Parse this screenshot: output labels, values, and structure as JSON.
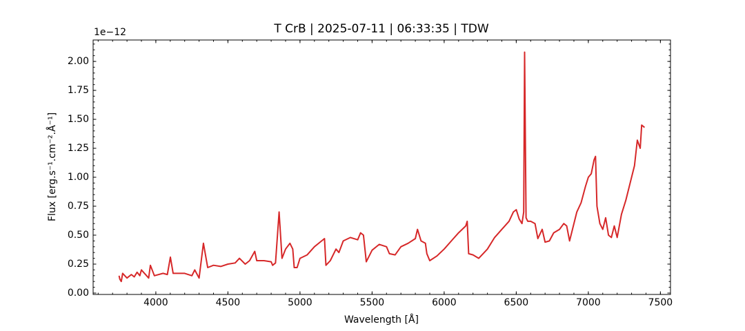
{
  "chart_data": {
    "type": "line",
    "title": "T CrB | 2025-07-11 | 06:33:35 | TDW",
    "xlabel": "Wavelength [Å]",
    "ylabel": "Flux [erg.s⁻¹.cm⁻².Å⁻¹]",
    "y_offset_label": "1e−12",
    "color": "#d62728",
    "x": [
      3745,
      3750,
      3760,
      3770,
      3800,
      3830,
      3850,
      3870,
      3889,
      3900,
      3950,
      3962,
      3990,
      4050,
      4080,
      4101,
      4120,
      4200,
      4250,
      4270,
      4300,
      4330,
      4360,
      4400,
      4450,
      4500,
      4550,
      4580,
      4620,
      4650,
      4686,
      4700,
      4750,
      4800,
      4810,
      4830,
      4855,
      4875,
      4900,
      4930,
      4950,
      4960,
      4980,
      5000,
      5050,
      5100,
      5150,
      5170,
      5180,
      5210,
      5250,
      5270,
      5300,
      5350,
      5400,
      5420,
      5440,
      5460,
      5500,
      5550,
      5600,
      5620,
      5660,
      5700,
      5750,
      5800,
      5815,
      5840,
      5870,
      5880,
      5900,
      5950,
      6000,
      6050,
      6100,
      6150,
      6160,
      6170,
      6200,
      6240,
      6270,
      6300,
      6350,
      6400,
      6450,
      6480,
      6500,
      6520,
      6540,
      6552,
      6558,
      6568,
      6580,
      6600,
      6630,
      6650,
      6680,
      6700,
      6730,
      6760,
      6800,
      6830,
      6850,
      6870,
      6890,
      6920,
      6950,
      6980,
      7000,
      7020,
      7040,
      7050,
      7060,
      7080,
      7100,
      7120,
      7140,
      7160,
      7180,
      7200,
      7230,
      7260,
      7290,
      7320,
      7340,
      7360,
      7370,
      7390
    ],
    "values": [
      0.15,
      0.12,
      0.1,
      0.17,
      0.13,
      0.16,
      0.14,
      0.18,
      0.15,
      0.2,
      0.13,
      0.24,
      0.15,
      0.17,
      0.16,
      0.31,
      0.17,
      0.17,
      0.15,
      0.2,
      0.13,
      0.43,
      0.22,
      0.24,
      0.23,
      0.25,
      0.26,
      0.3,
      0.25,
      0.28,
      0.36,
      0.28,
      0.28,
      0.27,
      0.24,
      0.26,
      0.7,
      0.3,
      0.38,
      0.43,
      0.38,
      0.22,
      0.22,
      0.3,
      0.33,
      0.4,
      0.45,
      0.47,
      0.24,
      0.28,
      0.38,
      0.35,
      0.45,
      0.48,
      0.46,
      0.52,
      0.5,
      0.27,
      0.37,
      0.42,
      0.4,
      0.34,
      0.33,
      0.4,
      0.43,
      0.47,
      0.55,
      0.45,
      0.43,
      0.34,
      0.28,
      0.32,
      0.38,
      0.45,
      0.52,
      0.58,
      0.62,
      0.34,
      0.33,
      0.3,
      0.34,
      0.38,
      0.48,
      0.55,
      0.62,
      0.7,
      0.72,
      0.64,
      0.6,
      0.7,
      2.08,
      0.65,
      0.62,
      0.62,
      0.6,
      0.47,
      0.55,
      0.44,
      0.45,
      0.52,
      0.55,
      0.6,
      0.58,
      0.45,
      0.55,
      0.7,
      0.78,
      0.92,
      1.0,
      1.03,
      1.15,
      1.18,
      0.75,
      0.6,
      0.55,
      0.65,
      0.5,
      0.48,
      0.58,
      0.48,
      0.68,
      0.8,
      0.95,
      1.1,
      1.32,
      1.25,
      1.45,
      1.43
    ],
    "xlim": [
      3565,
      7570
    ],
    "xticks": [
      4000,
      4500,
      5000,
      5500,
      6000,
      6500,
      7000,
      7500
    ],
    "ylim": [
      -0.012,
      2.185
    ],
    "yticks": [
      {
        "value": 0,
        "label": "0.00"
      },
      {
        "value": 0.25,
        "label": "0.25"
      },
      {
        "value": 0.5,
        "label": "0.50"
      },
      {
        "value": 0.75,
        "label": "0.75"
      },
      {
        "value": 1,
        "label": "1.00"
      },
      {
        "value": 1.25,
        "label": "1.25"
      },
      {
        "value": 1.5,
        "label": "1.50"
      },
      {
        "value": 1.75,
        "label": "1.75"
      },
      {
        "value": 2,
        "label": "2.00"
      }
    ]
  }
}
